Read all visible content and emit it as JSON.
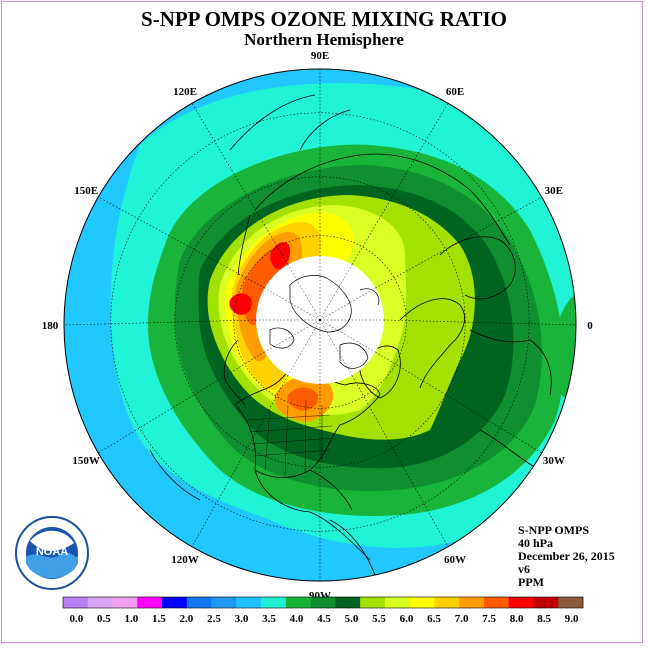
{
  "header": {
    "title": "S-NPP OMPS OZONE MIXING RATIO",
    "subtitle": "Northern Hemisphere"
  },
  "map": {
    "projection": "north-polar-stereographic",
    "longitude_labels": [
      {
        "label": "90E",
        "lon": 90
      },
      {
        "label": "60E",
        "lon": 60
      },
      {
        "label": "30E",
        "lon": 30
      },
      {
        "label": "0",
        "lon": 0
      },
      {
        "label": "30W",
        "lon": -30
      },
      {
        "label": "60W",
        "lon": -60
      },
      {
        "label": "90W",
        "lon": -90
      },
      {
        "label": "120W",
        "lon": -120
      },
      {
        "label": "150W",
        "lon": -150
      },
      {
        "label": "180",
        "lon": 180
      },
      {
        "label": "150E",
        "lon": 150
      },
      {
        "label": "120E",
        "lon": 120
      }
    ],
    "polar_night_no_data": true
  },
  "info": {
    "instrument": "S-NPP OMPS",
    "level": "40 hPa",
    "date": "December 26, 2015",
    "version": "v6",
    "units": "PPM"
  },
  "colorbar": {
    "labels": [
      "0.0",
      "0.5",
      "1.0",
      "1.5",
      "2.0",
      "2.5",
      "3.0",
      "3.5",
      "4.0",
      "4.5",
      "5.0",
      "5.5",
      "6.0",
      "6.5",
      "7.0",
      "7.5",
      "8.0",
      "8.5",
      "9.0"
    ],
    "colors": [
      "#b681f2",
      "#d8a4f4",
      "#f0a0f0",
      "#ff00ff",
      "#0000ff",
      "#1577f0",
      "#1e98f0",
      "#20c0ff",
      "#21f0d4",
      "#17b335",
      "#0e8e2e",
      "#00601f",
      "#a1e000",
      "#d8ff22",
      "#ffff00",
      "#ffd000",
      "#ff9c00",
      "#ff5a00",
      "#ff0000",
      "#c00000",
      "#8b5a3a"
    ]
  },
  "ozone_colors": {
    "3.0-3.5": "#20c8ff",
    "3.5-4.0": "#21f3d6",
    "4.0-4.5": "#18b53a",
    "4.5-5.0": "#0f8f2f",
    "5.0-5.5": "#006421",
    "5.5-6.0": "#a3e103",
    "6.0-6.5": "#d9ff24",
    "6.5-7.0": "#ffff00",
    "7.0-7.5": "#ffd100",
    "7.5-8.0": "#ff9d00",
    "8.0-8.5": "#ff5b00",
    "8.5-9.0": "#ff0000"
  },
  "logo": {
    "text": "NOAA"
  }
}
